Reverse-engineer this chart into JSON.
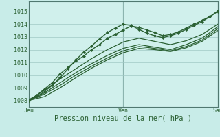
{
  "title": "",
  "xlabel": "Pression niveau de la mer( hPa )",
  "bg_color": "#c8ece8",
  "plot_bg_color": "#d0f0ec",
  "grid_color": "#a0c8c4",
  "line_color": "#2a6032",
  "marker_color": "#2a6032",
  "ylim": [
    1007.5,
    1015.8
  ],
  "xlim": [
    0,
    48
  ],
  "xticks": [
    0,
    24,
    48
  ],
  "xticklabels": [
    "Jeu",
    "Ven",
    "Sam"
  ],
  "yticks": [
    1008,
    1009,
    1010,
    1011,
    1012,
    1013,
    1014,
    1015
  ],
  "series": [
    {
      "x": [
        0,
        2,
        4,
        6,
        8,
        10,
        12,
        14,
        16,
        18,
        20,
        22,
        24,
        26,
        28,
        30,
        32,
        34,
        36,
        38,
        40,
        42,
        44,
        46,
        48
      ],
      "y": [
        1008.05,
        1008.4,
        1008.9,
        1009.4,
        1010.1,
        1010.6,
        1011.1,
        1011.5,
        1012.0,
        1012.4,
        1012.9,
        1013.2,
        1013.55,
        1013.85,
        1013.75,
        1013.55,
        1013.35,
        1013.1,
        1013.2,
        1013.4,
        1013.7,
        1014.0,
        1014.3,
        1014.6,
        1015.0
      ],
      "marker": "D",
      "markersize": 2.0,
      "linewidth": 1.0
    },
    {
      "x": [
        0,
        2,
        4,
        6,
        8,
        10,
        12,
        14,
        16,
        18,
        20,
        22,
        24,
        26,
        28,
        30,
        32,
        34,
        36,
        38,
        40,
        42,
        44,
        46,
        48
      ],
      "y": [
        1008.0,
        1008.3,
        1008.7,
        1009.2,
        1009.8,
        1010.5,
        1011.2,
        1011.8,
        1012.3,
        1012.85,
        1013.35,
        1013.7,
        1014.0,
        1013.9,
        1013.6,
        1013.3,
        1013.1,
        1012.95,
        1013.1,
        1013.3,
        1013.6,
        1013.9,
        1014.2,
        1014.6,
        1015.05
      ],
      "marker": "D",
      "markersize": 2.0,
      "linewidth": 1.0
    },
    {
      "x": [
        0,
        4,
        8,
        12,
        16,
        20,
        24,
        28,
        32,
        36,
        40,
        44,
        48
      ],
      "y": [
        1008.0,
        1008.8,
        1009.7,
        1010.5,
        1011.3,
        1012.0,
        1012.6,
        1012.9,
        1012.65,
        1012.4,
        1012.7,
        1013.2,
        1014.0
      ],
      "marker": null,
      "markersize": 0,
      "linewidth": 0.9
    },
    {
      "x": [
        0,
        4,
        8,
        12,
        16,
        20,
        24,
        28,
        32,
        36,
        40,
        44,
        48
      ],
      "y": [
        1008.0,
        1008.6,
        1009.4,
        1010.2,
        1010.9,
        1011.55,
        1012.1,
        1012.4,
        1012.2,
        1012.0,
        1012.4,
        1012.9,
        1013.8
      ],
      "marker": null,
      "markersize": 0,
      "linewidth": 0.9
    },
    {
      "x": [
        0,
        4,
        8,
        12,
        16,
        20,
        24,
        28,
        32,
        36,
        40,
        44,
        48
      ],
      "y": [
        1008.0,
        1008.5,
        1009.2,
        1010.0,
        1010.7,
        1011.35,
        1011.9,
        1012.25,
        1012.1,
        1011.9,
        1012.25,
        1012.75,
        1013.65
      ],
      "marker": null,
      "markersize": 0,
      "linewidth": 0.9
    },
    {
      "x": [
        0,
        4,
        8,
        12,
        16,
        20,
        24,
        28,
        32,
        36,
        40,
        44,
        48
      ],
      "y": [
        1008.0,
        1008.3,
        1009.0,
        1009.8,
        1010.55,
        1011.2,
        1011.75,
        1012.1,
        1012.0,
        1011.85,
        1012.15,
        1012.65,
        1013.5
      ],
      "marker": null,
      "markersize": 0,
      "linewidth": 0.9
    }
  ],
  "vline_color": "#608880",
  "spine_color": "#507870",
  "tick_label_color": "#2a6032",
  "tick_fontsize": 6.0,
  "xlabel_fontsize": 7.5
}
